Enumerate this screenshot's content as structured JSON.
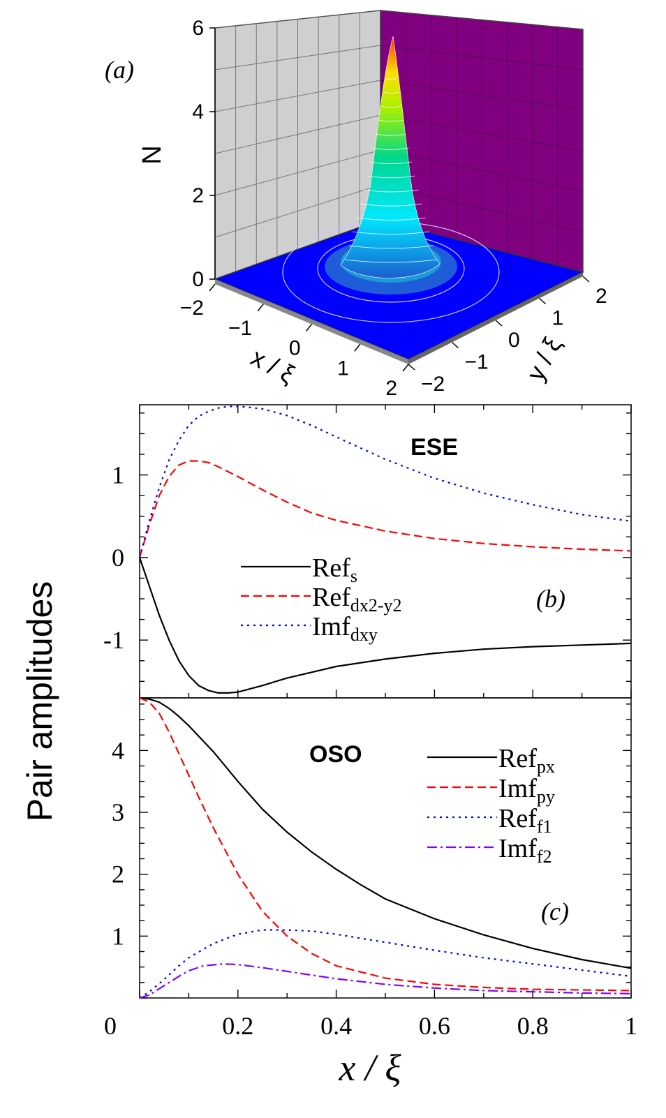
{
  "chart_data": [
    {
      "panel": "a",
      "type": "surface3d",
      "panel_label": "(a)",
      "zlabel": "N",
      "xlabel": "x / ξ",
      "ylabel": "y / ξ",
      "z_ticks": [
        "0",
        "2",
        "4",
        "6"
      ],
      "x_ticks": [
        "−2",
        "−1",
        "0",
        "1",
        "2"
      ],
      "y_ticks": [
        "−2",
        "−1",
        "0",
        "1",
        "2"
      ],
      "zlim": [
        0,
        6
      ],
      "xlim": [
        -2,
        2
      ],
      "ylim": [
        -2,
        2
      ],
      "peak_value": 5.8,
      "colors": {
        "left_wall": "#cfcfcf",
        "right_wall": "#800080",
        "floor": "#0000ff"
      }
    },
    {
      "panel": "b",
      "type": "line",
      "panel_label": "(b)",
      "annotation": "ESE",
      "xlim": [
        0,
        1
      ],
      "ylim": [
        -1.7,
        1.85
      ],
      "y_ticks": [
        "1",
        "0",
        "-1"
      ],
      "series": [
        {
          "name": "Ref",
          "sub": "s",
          "color": "#000000",
          "dash": "solid",
          "x": [
            0,
            0.02,
            0.04,
            0.06,
            0.08,
            0.1,
            0.12,
            0.14,
            0.16,
            0.18,
            0.2,
            0.25,
            0.3,
            0.35,
            0.4,
            0.5,
            0.6,
            0.7,
            0.8,
            0.9,
            1.0
          ],
          "y": [
            0,
            -0.35,
            -0.7,
            -1.0,
            -1.25,
            -1.43,
            -1.55,
            -1.61,
            -1.64,
            -1.64,
            -1.63,
            -1.55,
            -1.46,
            -1.39,
            -1.32,
            -1.23,
            -1.16,
            -1.11,
            -1.08,
            -1.06,
            -1.04
          ]
        },
        {
          "name": "Ref",
          "sub": "dx2-y2",
          "color": "#ff0000",
          "dash": "dashed",
          "x": [
            0,
            0.02,
            0.04,
            0.06,
            0.08,
            0.1,
            0.12,
            0.14,
            0.16,
            0.2,
            0.25,
            0.3,
            0.35,
            0.4,
            0.5,
            0.6,
            0.7,
            0.8,
            0.9,
            1.0
          ],
          "y": [
            0,
            0.4,
            0.75,
            0.98,
            1.12,
            1.17,
            1.17,
            1.15,
            1.1,
            0.98,
            0.82,
            0.67,
            0.54,
            0.45,
            0.32,
            0.23,
            0.17,
            0.13,
            0.1,
            0.08
          ]
        },
        {
          "name": "Imf",
          "sub": "dxy",
          "color": "#0000ff",
          "dash": "dotted",
          "x": [
            0,
            0.02,
            0.04,
            0.06,
            0.08,
            0.1,
            0.12,
            0.14,
            0.16,
            0.18,
            0.2,
            0.22,
            0.25,
            0.3,
            0.35,
            0.4,
            0.5,
            0.6,
            0.7,
            0.8,
            0.9,
            1.0
          ],
          "y": [
            0,
            0.45,
            0.85,
            1.18,
            1.42,
            1.6,
            1.71,
            1.77,
            1.81,
            1.83,
            1.83,
            1.82,
            1.8,
            1.72,
            1.6,
            1.46,
            1.19,
            0.96,
            0.78,
            0.64,
            0.52,
            0.44
          ]
        }
      ]
    },
    {
      "panel": "c",
      "type": "line",
      "panel_label": "(c)",
      "annotation": "OSO",
      "xlim": [
        0,
        1
      ],
      "ylim": [
        0,
        4.85
      ],
      "y_ticks": [
        "4",
        "3",
        "2",
        "1"
      ],
      "x_ticks": [
        "0",
        "0.2",
        "0.4",
        "0.6",
        "0.8",
        "1"
      ],
      "xlabel": "x / ξ",
      "series": [
        {
          "name": "Ref",
          "sub": "px",
          "color": "#000000",
          "dash": "solid",
          "x": [
            0,
            0.02,
            0.04,
            0.06,
            0.08,
            0.1,
            0.15,
            0.2,
            0.25,
            0.3,
            0.35,
            0.4,
            0.45,
            0.5,
            0.6,
            0.7,
            0.8,
            0.9,
            1.0
          ],
          "y": [
            4.85,
            4.83,
            4.78,
            4.68,
            4.55,
            4.4,
            3.98,
            3.5,
            3.05,
            2.68,
            2.36,
            2.08,
            1.83,
            1.6,
            1.28,
            1.02,
            0.8,
            0.62,
            0.48
          ]
        },
        {
          "name": "Imf",
          "sub": "py",
          "color": "#ff0000",
          "dash": "dashed",
          "x": [
            0,
            0.02,
            0.04,
            0.06,
            0.08,
            0.1,
            0.12,
            0.15,
            0.2,
            0.25,
            0.3,
            0.35,
            0.4,
            0.5,
            0.6,
            0.7,
            0.8,
            0.9,
            1.0
          ],
          "y": [
            4.85,
            4.78,
            4.6,
            4.3,
            3.95,
            3.6,
            3.25,
            2.75,
            2.0,
            1.4,
            1.0,
            0.72,
            0.52,
            0.32,
            0.22,
            0.17,
            0.14,
            0.13,
            0.12
          ]
        },
        {
          "name": "Ref",
          "sub": "f1",
          "color": "#0000ff",
          "dash": "dotted",
          "x": [
            0,
            0.02,
            0.05,
            0.08,
            0.1,
            0.15,
            0.2,
            0.25,
            0.3,
            0.35,
            0.4,
            0.5,
            0.6,
            0.7,
            0.8,
            0.9,
            1.0
          ],
          "y": [
            0,
            0.1,
            0.3,
            0.52,
            0.65,
            0.88,
            1.03,
            1.1,
            1.1,
            1.08,
            1.03,
            0.9,
            0.77,
            0.65,
            0.55,
            0.45,
            0.35
          ]
        },
        {
          "name": "Imf",
          "sub": "f2",
          "color": "#8000ff",
          "dash": "dashdot",
          "x": [
            0,
            0.02,
            0.05,
            0.08,
            0.1,
            0.13,
            0.17,
            0.2,
            0.25,
            0.3,
            0.35,
            0.4,
            0.5,
            0.6,
            0.7,
            0.8,
            0.9,
            1.0
          ],
          "y": [
            0,
            0.05,
            0.2,
            0.35,
            0.44,
            0.52,
            0.55,
            0.54,
            0.49,
            0.43,
            0.37,
            0.31,
            0.22,
            0.16,
            0.12,
            0.1,
            0.08,
            0.07
          ]
        }
      ]
    }
  ],
  "shared_ylabel": "Pair amplitudes"
}
